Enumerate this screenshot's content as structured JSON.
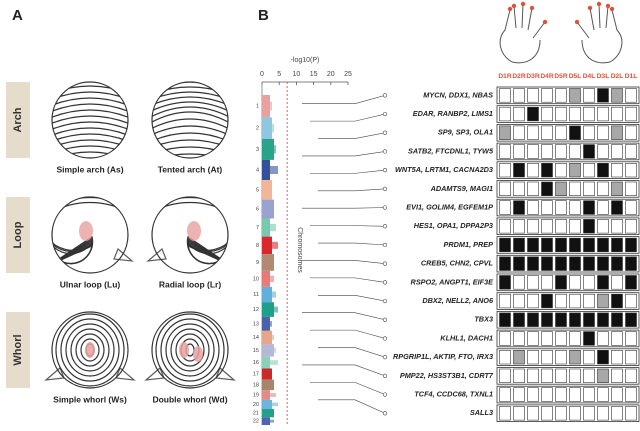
{
  "panel_a": {
    "label": "A",
    "groups": [
      {
        "name": "Arch",
        "items": [
          "Simple arch (As)",
          "Tented arch (At)"
        ]
      },
      {
        "name": "Loop",
        "items": [
          "Ulnar loop (Lu)",
          "Radial loop (Lr)"
        ]
      },
      {
        "name": "Whorl",
        "items": [
          "Simple whorl (Ws)",
          "Double whorl (Wd)"
        ]
      }
    ]
  },
  "panel_b": {
    "label": "B",
    "axis_label": "-log10(P)",
    "xlim": [
      0,
      25
    ],
    "xticks": [
      0,
      5,
      10,
      15,
      20,
      25
    ],
    "threshold": 7.3,
    "threshold_color": "#e0303a",
    "y_label": "Chromosomes",
    "chromosomes": [
      "1",
      "2",
      "3",
      "4",
      "5",
      "6",
      "7",
      "8",
      "9",
      "10",
      "11",
      "12",
      "13",
      "14",
      "15",
      "16",
      "17",
      "18",
      "19",
      "20",
      "21",
      "22"
    ],
    "chromosome_colors": [
      "#e8a0a0",
      "#8fc7e0",
      "#2aa38a",
      "#35509a",
      "#f2b59a",
      "#9aa3cf",
      "#77c9b0",
      "#d8282c",
      "#b08a72",
      "#e87a7a",
      "#5fb0da",
      "#1f9e8a",
      "#4a63a8",
      "#e7a58a",
      "#b5b8d8",
      "#8bd0b8",
      "#c92a2a",
      "#a8856a",
      "#e28b8b",
      "#6ab6dd",
      "#25a08c",
      "#4c67ad"
    ],
    "fingers": [
      "D1R",
      "D2R",
      "D3R",
      "D4R",
      "D5R",
      "D5L",
      "D4L",
      "D3L",
      "D2L",
      "D1L"
    ],
    "finger_color": "#e0503a",
    "cell_colors": [
      "#ffffff",
      "#a8a8a8",
      "#111111"
    ],
    "rows": [
      {
        "genes": "MYCN, DDX1, NBAS",
        "cells": [
          0,
          0,
          0,
          0,
          0,
          1,
          0,
          2,
          1,
          0
        ]
      },
      {
        "genes": "EDAR, RANBP2, LIMS1",
        "cells": [
          0,
          0,
          2,
          0,
          0,
          0,
          0,
          0,
          0,
          0
        ]
      },
      {
        "genes": "SP9, SP3, OLA1",
        "cells": [
          1,
          0,
          0,
          0,
          0,
          2,
          0,
          0,
          1,
          0
        ]
      },
      {
        "genes": "SATB2, FTCDNL1, TYW5",
        "cells": [
          0,
          0,
          0,
          0,
          0,
          0,
          2,
          0,
          0,
          0
        ]
      },
      {
        "genes": "WNT5A, LRTM1, CACNA2D3",
        "cells": [
          0,
          2,
          0,
          2,
          0,
          1,
          0,
          2,
          0,
          0
        ]
      },
      {
        "genes": "ADAMTS9, MAGI1",
        "cells": [
          0,
          0,
          0,
          2,
          1,
          0,
          0,
          0,
          1,
          0
        ]
      },
      {
        "genes": "EVI1, GOLIM4, EGFEM1P",
        "cells": [
          0,
          2,
          0,
          0,
          0,
          0,
          2,
          0,
          2,
          0
        ]
      },
      {
        "genes": "HES1, OPA1, DPPA2P3",
        "cells": [
          0,
          0,
          0,
          0,
          0,
          0,
          2,
          0,
          0,
          0
        ]
      },
      {
        "genes": "PRDM1, PREP",
        "cells": [
          2,
          2,
          2,
          2,
          2,
          2,
          2,
          2,
          2,
          2
        ]
      },
      {
        "genes": "CREB5, CHN2, CPVL",
        "cells": [
          2,
          2,
          2,
          2,
          2,
          2,
          2,
          2,
          2,
          2
        ]
      },
      {
        "genes": "RSPO2, ANGPT1, EIF3E",
        "cells": [
          2,
          0,
          0,
          0,
          2,
          0,
          0,
          2,
          0,
          2
        ]
      },
      {
        "genes": "DBX2, NELL2, ANO6",
        "cells": [
          0,
          0,
          0,
          2,
          0,
          0,
          0,
          1,
          2,
          0
        ]
      },
      {
        "genes": "TBX3",
        "cells": [
          2,
          2,
          2,
          2,
          2,
          2,
          2,
          2,
          2,
          2
        ]
      },
      {
        "genes": "KLHL1, DACH1",
        "cells": [
          0,
          0,
          0,
          0,
          0,
          0,
          2,
          0,
          0,
          0
        ]
      },
      {
        "genes": "RPGRIP1L, AKTIP, FTO, IRX3",
        "cells": [
          0,
          1,
          0,
          0,
          0,
          1,
          0,
          2,
          0,
          0
        ]
      },
      {
        "genes": "PMP22, HS3ST3B1, CDRT7",
        "cells": [
          0,
          0,
          0,
          0,
          0,
          0,
          0,
          1,
          0,
          0
        ]
      },
      {
        "genes": "TCF4, CCDC68, TXNL1",
        "cells": [
          0,
          0,
          0,
          0,
          0,
          0,
          0,
          0,
          0,
          0
        ]
      },
      {
        "genes": "SALL3",
        "cells": [
          0,
          0,
          0,
          0,
          0,
          0,
          0,
          0,
          0,
          0
        ]
      }
    ]
  }
}
